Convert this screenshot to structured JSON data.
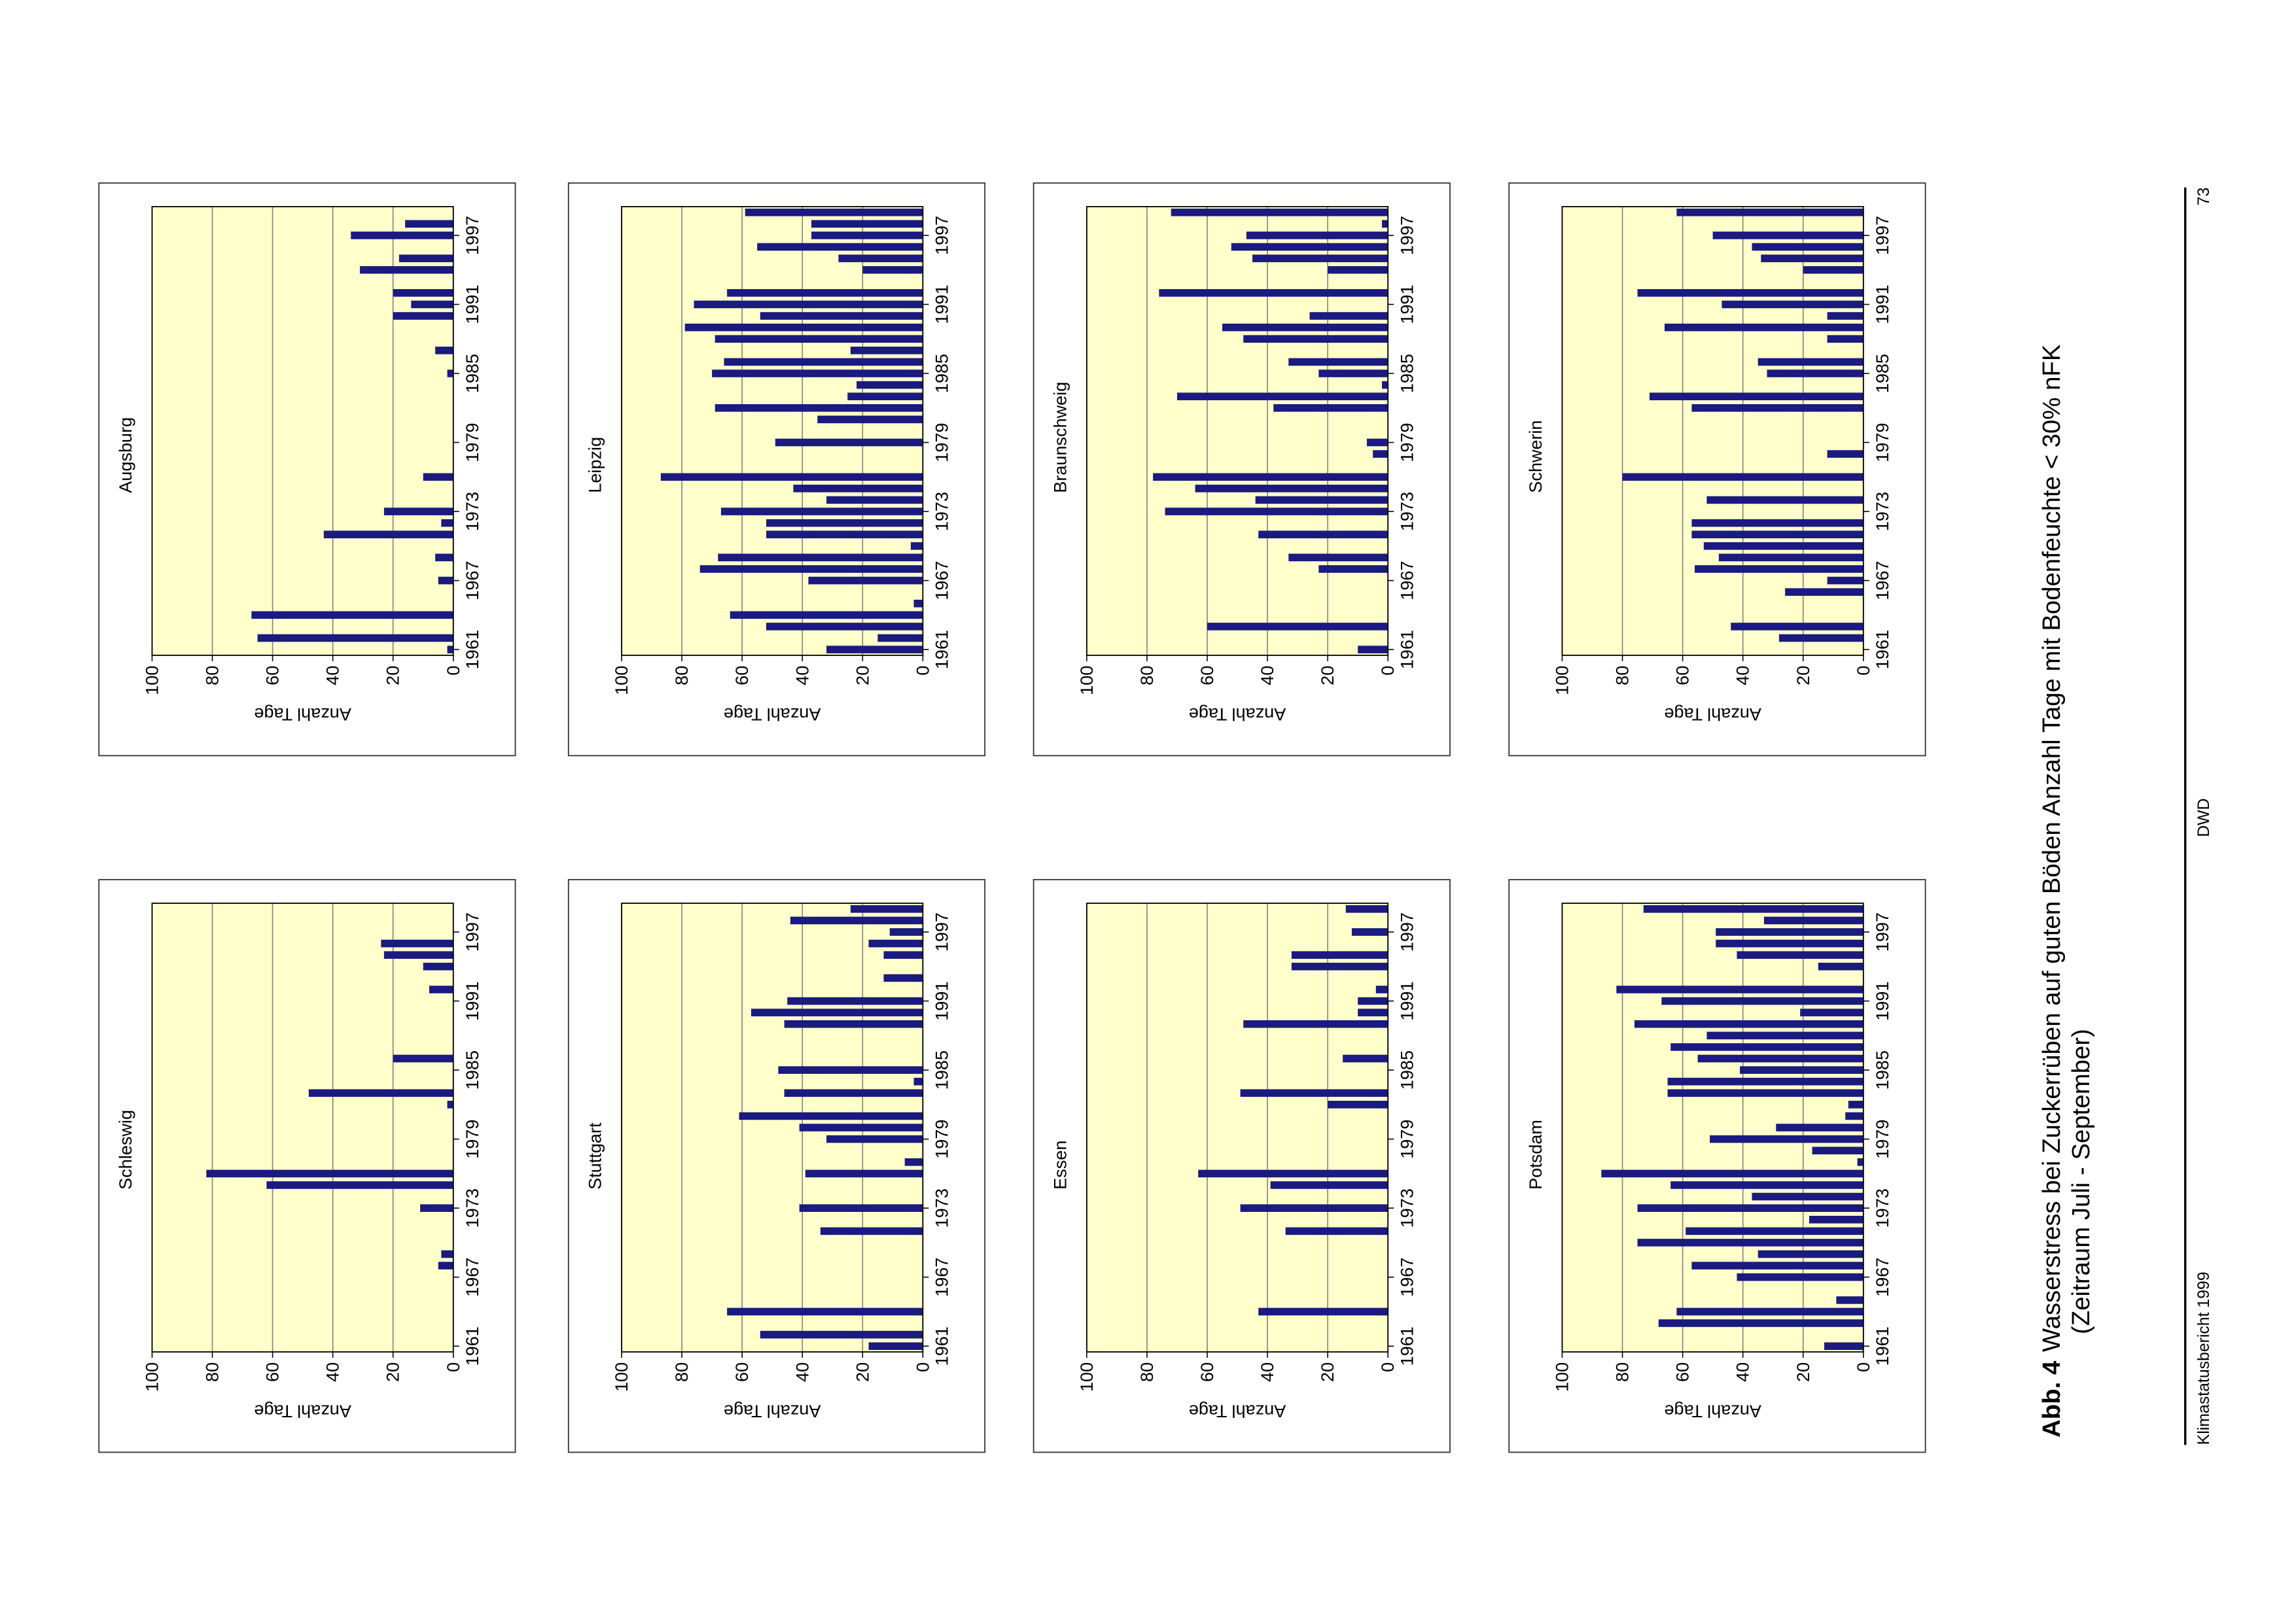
{
  "chart_data": [
    {
      "type": "bar",
      "title": "Schleswig",
      "y_label": "Anzahl Tage",
      "color": "#1a1a80",
      "grid": true,
      "ylim": [
        0,
        100
      ],
      "yticks": [
        0,
        20,
        40,
        60,
        80,
        100
      ],
      "categories": [
        1961,
        null,
        null,
        null,
        null,
        null,
        1967,
        null,
        null,
        null,
        null,
        null,
        1973,
        null,
        null,
        null,
        null,
        null,
        1979,
        null,
        null,
        null,
        null,
        null,
        1985,
        null,
        null,
        null,
        null,
        null,
        1991,
        null,
        null,
        null,
        null,
        null,
        1997,
        null,
        null
      ],
      "values": [
        0,
        0,
        0,
        0,
        0,
        0,
        0,
        5,
        4,
        0,
        0,
        0,
        11,
        0,
        62,
        82,
        0,
        0,
        0,
        0,
        0,
        2,
        48,
        0,
        0,
        20,
        0,
        0,
        0,
        0,
        0,
        8,
        0,
        10,
        23,
        24,
        0,
        0,
        0
      ]
    },
    {
      "type": "bar",
      "title": "Augsburg",
      "y_label": "Anzahl Tage",
      "color": "#1a1a80",
      "grid": true,
      "ylim": [
        0,
        100
      ],
      "yticks": [
        0,
        20,
        40,
        60,
        80,
        100
      ],
      "categories": [
        1961,
        null,
        null,
        null,
        null,
        null,
        1967,
        null,
        null,
        null,
        null,
        null,
        1973,
        null,
        null,
        null,
        null,
        null,
        1979,
        null,
        null,
        null,
        null,
        null,
        1985,
        null,
        null,
        null,
        null,
        null,
        1991,
        null,
        null,
        null,
        null,
        null,
        1997,
        null,
        null
      ],
      "values": [
        2,
        65,
        0,
        67,
        0,
        0,
        5,
        0,
        6,
        0,
        43,
        4,
        23,
        0,
        0,
        10,
        0,
        0,
        0,
        0,
        0,
        0,
        0,
        0,
        2,
        0,
        6,
        0,
        0,
        20,
        14,
        20,
        0,
        31,
        18,
        0,
        34,
        16,
        0
      ]
    },
    {
      "type": "bar",
      "title": "Stuttgart",
      "y_label": "Anzahl Tage",
      "color": "#1a1a80",
      "grid": true,
      "ylim": [
        0,
        100
      ],
      "yticks": [
        0,
        20,
        40,
        60,
        80,
        100
      ],
      "categories": [
        1961,
        null,
        null,
        null,
        null,
        null,
        1967,
        null,
        null,
        null,
        null,
        null,
        1973,
        null,
        null,
        null,
        null,
        null,
        1979,
        null,
        null,
        null,
        null,
        null,
        1985,
        null,
        null,
        null,
        null,
        null,
        1991,
        null,
        null,
        null,
        null,
        null,
        1997,
        null,
        null
      ],
      "values": [
        18,
        54,
        0,
        65,
        0,
        0,
        0,
        0,
        0,
        0,
        34,
        0,
        41,
        0,
        0,
        39,
        6,
        0,
        32,
        41,
        61,
        0,
        46,
        3,
        48,
        0,
        0,
        0,
        46,
        57,
        45,
        0,
        13,
        0,
        13,
        18,
        11,
        44,
        24
      ]
    },
    {
      "type": "bar",
      "title": "Leipzig",
      "y_label": "Anzahl Tage",
      "color": "#1a1a80",
      "grid": true,
      "ylim": [
        0,
        100
      ],
      "yticks": [
        0,
        20,
        40,
        60,
        80,
        100
      ],
      "categories": [
        1961,
        null,
        null,
        null,
        null,
        null,
        1967,
        null,
        null,
        null,
        null,
        null,
        1973,
        null,
        null,
        null,
        null,
        null,
        1979,
        null,
        null,
        null,
        null,
        null,
        1985,
        null,
        null,
        null,
        null,
        null,
        1991,
        null,
        null,
        null,
        null,
        null,
        1997,
        null,
        null
      ],
      "values": [
        32,
        15,
        52,
        64,
        3,
        0,
        38,
        74,
        68,
        4,
        52,
        52,
        67,
        32,
        43,
        87,
        0,
        0,
        49,
        0,
        35,
        69,
        25,
        22,
        70,
        66,
        24,
        69,
        79,
        54,
        76,
        65,
        0,
        20,
        28,
        55,
        37,
        37,
        59
      ]
    },
    {
      "type": "bar",
      "title": "Essen",
      "y_label": "Anzahl Tage",
      "color": "#1a1a80",
      "grid": true,
      "ylim": [
        0,
        100
      ],
      "yticks": [
        0,
        20,
        40,
        60,
        80,
        100
      ],
      "categories": [
        1961,
        null,
        null,
        null,
        null,
        null,
        1967,
        null,
        null,
        null,
        null,
        null,
        1973,
        null,
        null,
        null,
        null,
        null,
        1979,
        null,
        null,
        null,
        null,
        null,
        1985,
        null,
        null,
        null,
        null,
        null,
        1991,
        null,
        null,
        null,
        null,
        null,
        1997,
        null,
        null
      ],
      "values": [
        0,
        0,
        0,
        43,
        0,
        0,
        0,
        0,
        0,
        0,
        34,
        0,
        49,
        0,
        39,
        63,
        0,
        0,
        0,
        0,
        0,
        20,
        49,
        0,
        0,
        15,
        0,
        0,
        48,
        10,
        10,
        4,
        0,
        32,
        32,
        0,
        12,
        0,
        14
      ]
    },
    {
      "type": "bar",
      "title": "Braunschweig",
      "y_label": "Anzahl Tage",
      "color": "#1a1a80",
      "grid": true,
      "ylim": [
        0,
        100
      ],
      "yticks": [
        0,
        20,
        40,
        60,
        80,
        100
      ],
      "categories": [
        1961,
        null,
        null,
        null,
        null,
        null,
        1967,
        null,
        null,
        null,
        null,
        null,
        1973,
        null,
        null,
        null,
        null,
        null,
        1979,
        null,
        null,
        null,
        null,
        null,
        1985,
        null,
        null,
        null,
        null,
        null,
        1991,
        null,
        null,
        null,
        null,
        null,
        1997,
        null,
        null
      ],
      "values": [
        10,
        0,
        60,
        0,
        0,
        0,
        0,
        23,
        33,
        0,
        43,
        0,
        74,
        44,
        64,
        78,
        0,
        5,
        7,
        0,
        0,
        38,
        70,
        2,
        23,
        33,
        0,
        48,
        55,
        26,
        0,
        76,
        0,
        20,
        45,
        52,
        47,
        2,
        72
      ]
    },
    {
      "type": "bar",
      "title": "Potsdam",
      "y_label": "Anzahl Tage",
      "color": "#1a1a80",
      "grid": true,
      "ylim": [
        0,
        100
      ],
      "yticks": [
        0,
        20,
        40,
        60,
        80,
        100
      ],
      "categories": [
        1961,
        null,
        null,
        null,
        null,
        null,
        1967,
        null,
        null,
        null,
        null,
        null,
        1973,
        null,
        null,
        null,
        null,
        null,
        1979,
        null,
        null,
        null,
        null,
        null,
        1985,
        null,
        null,
        null,
        null,
        null,
        1991,
        null,
        null,
        null,
        null,
        null,
        1997,
        null,
        null
      ],
      "values": [
        13,
        0,
        68,
        62,
        9,
        0,
        42,
        57,
        35,
        75,
        59,
        18,
        75,
        37,
        64,
        87,
        2,
        17,
        51,
        29,
        6,
        5,
        65,
        65,
        41,
        55,
        64,
        52,
        76,
        21,
        67,
        82,
        0,
        15,
        42,
        49,
        49,
        33,
        73
      ]
    },
    {
      "type": "bar",
      "title": "Schwerin",
      "y_label": "Anzahl Tage",
      "color": "#1a1a80",
      "grid": true,
      "ylim": [
        0,
        100
      ],
      "yticks": [
        0,
        20,
        40,
        60,
        80,
        100
      ],
      "categories": [
        1961,
        null,
        null,
        null,
        null,
        null,
        1967,
        null,
        null,
        null,
        null,
        null,
        1973,
        null,
        null,
        null,
        null,
        null,
        1979,
        null,
        null,
        null,
        null,
        null,
        1985,
        null,
        null,
        null,
        null,
        null,
        1991,
        null,
        null,
        null,
        null,
        null,
        1997,
        null,
        null
      ],
      "values": [
        0,
        28,
        44,
        0,
        0,
        26,
        12,
        56,
        48,
        53,
        57,
        57,
        0,
        52,
        0,
        80,
        0,
        12,
        0,
        0,
        0,
        57,
        71,
        0,
        32,
        35,
        0,
        12,
        66,
        12,
        47,
        75,
        0,
        20,
        34,
        37,
        50,
        0,
        62
      ]
    }
  ],
  "caption": {
    "label": "Abb. 4",
    "text": "Wasserstress bei Zuckerrüben auf guten Böden Anzahl Tage mit Bodenfeuchte < 30% nFK",
    "line2": "(Zeitraum Juli - September)"
  },
  "footer": {
    "left": "Klimastatusbericht 1999",
    "center": "DWD",
    "right": "73"
  }
}
